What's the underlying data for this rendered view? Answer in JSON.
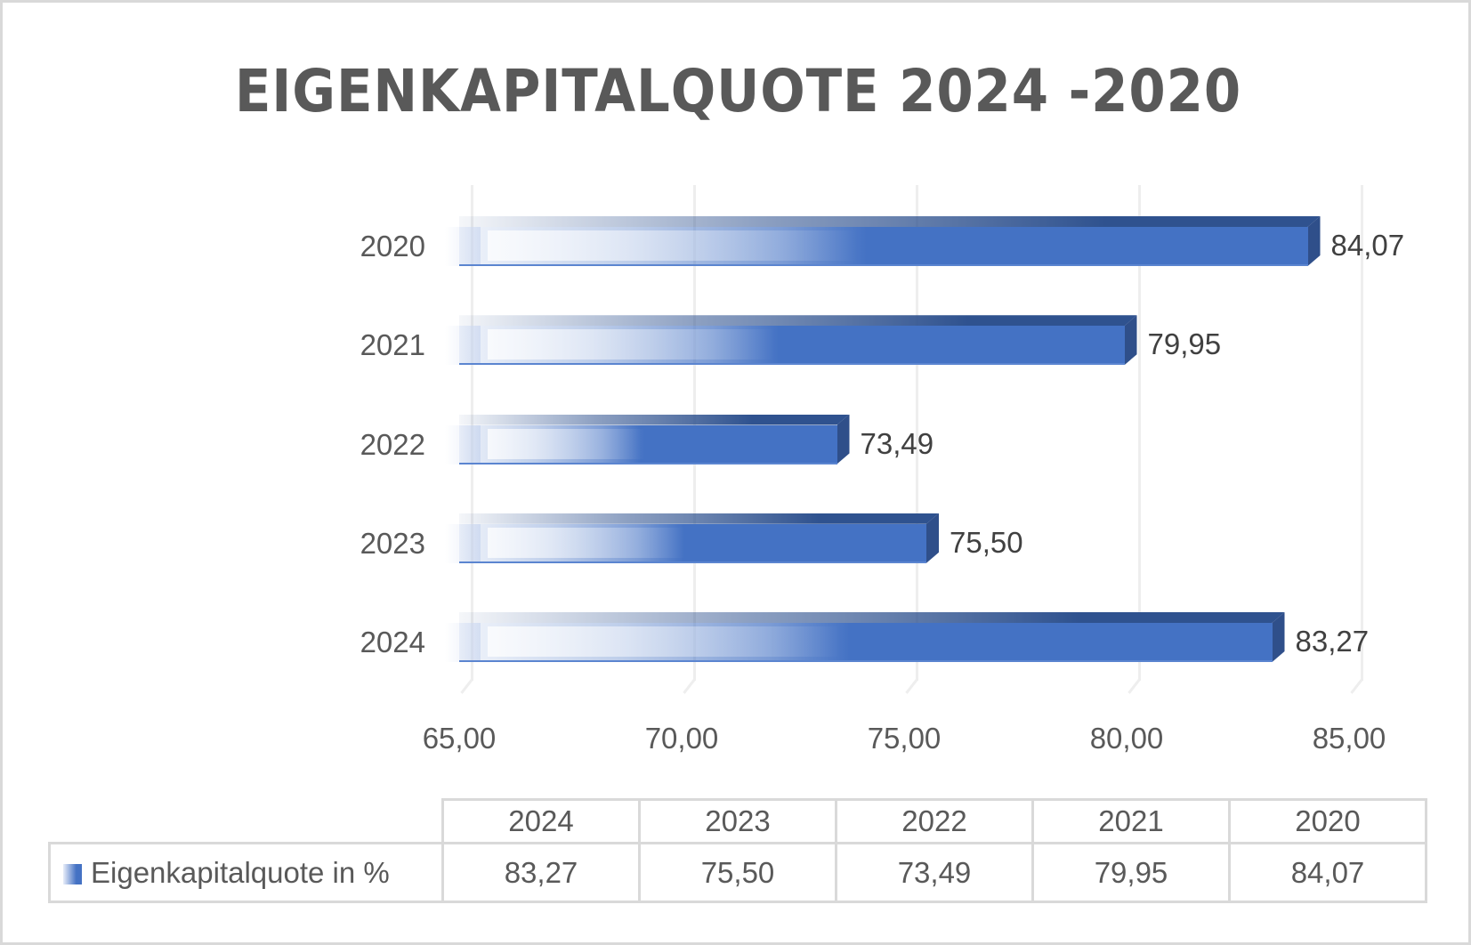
{
  "title": "EIGENKAPITALQUOTE 2024 -2020",
  "colors": {
    "bar_front": "#4472C4",
    "bar_top": "#2F528F",
    "bar_side": "#2F4F8A",
    "text": "#595959",
    "value_text": "#404040",
    "gridline": "#EEEEEE",
    "border": "#D9D9D9"
  },
  "axis": {
    "ticks": [
      "65,00",
      "70,00",
      "75,00",
      "80,00",
      "85,00"
    ],
    "tick_values": [
      65,
      70,
      75,
      80,
      85
    ]
  },
  "categories_top_to_bottom": [
    "2020",
    "2021",
    "2022",
    "2023",
    "2024"
  ],
  "value_labels_top_to_bottom": [
    "84,07",
    "79,95",
    "73,49",
    "75,50",
    "83,27"
  ],
  "data_table": {
    "headers": [
      "2024",
      "2023",
      "2022",
      "2021",
      "2020"
    ],
    "series_label": "Eigenkapitalquote in %",
    "values": [
      "83,27",
      "75,50",
      "73,49",
      "79,95",
      "84,07"
    ]
  },
  "chart_data": {
    "type": "bar",
    "orientation": "horizontal",
    "title": "EIGENKAPITALQUOTE 2024 -2020",
    "categories": [
      "2024",
      "2023",
      "2022",
      "2021",
      "2020"
    ],
    "series": [
      {
        "name": "Eigenkapitalquote in %",
        "values": [
          83.27,
          75.5,
          73.49,
          79.95,
          84.07
        ]
      }
    ],
    "xlabel": "",
    "ylabel": "",
    "xlim": [
      65,
      85
    ],
    "x_ticks": [
      65,
      70,
      75,
      80,
      85
    ],
    "grid": true,
    "data_labels": true,
    "legend_position": "data-table",
    "style": "3d-clustered-bar"
  }
}
